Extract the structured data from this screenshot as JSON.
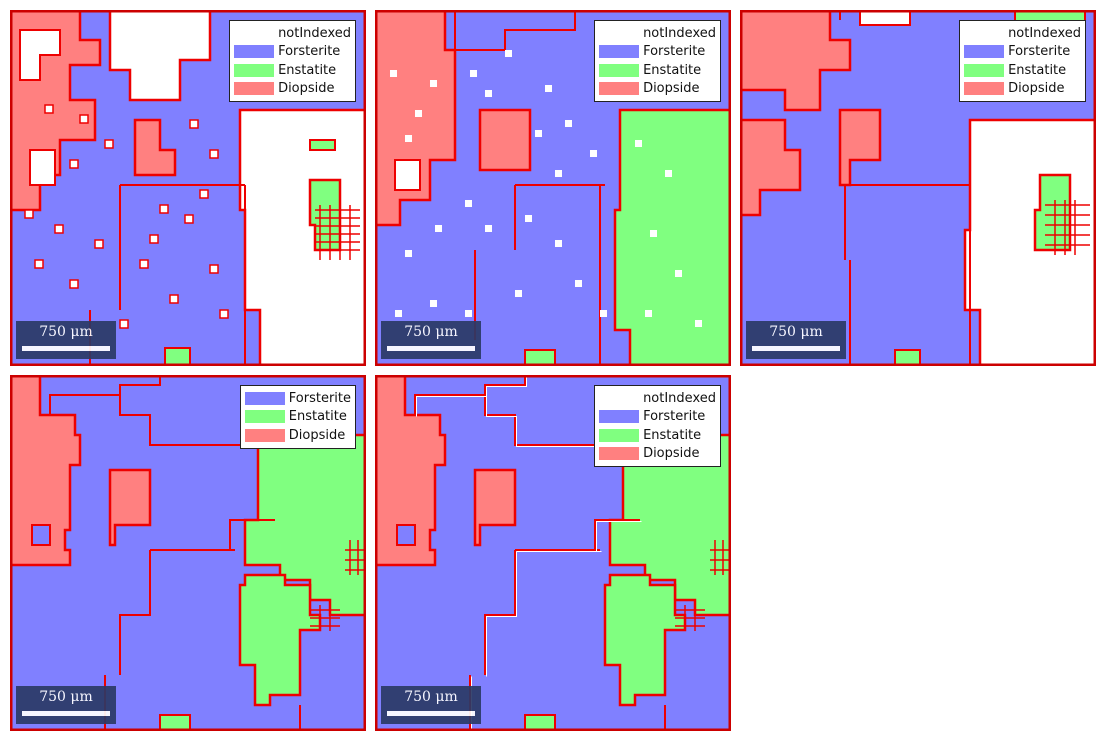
{
  "phases": [
    {
      "name": "notIndexed",
      "color": "#ffffff"
    },
    {
      "name": "Forsterite",
      "color": "#8080ff"
    },
    {
      "name": "Enstatite",
      "color": "#80ff80"
    },
    {
      "name": "Diopside",
      "color": "#ff8080"
    }
  ],
  "boundary_color": "#ee0000",
  "scalebar_label": "750 μm",
  "panels": [
    {
      "id": "panel-1",
      "legend": [
        "notIndexed",
        "Forsterite",
        "Enstatite",
        "Diopside"
      ]
    },
    {
      "id": "panel-2",
      "legend": [
        "notIndexed",
        "Forsterite",
        "Enstatite",
        "Diopside"
      ]
    },
    {
      "id": "panel-3",
      "legend": [
        "notIndexed",
        "Forsterite",
        "Enstatite",
        "Diopside"
      ]
    },
    {
      "id": "panel-4",
      "legend": [
        "Forsterite",
        "Enstatite",
        "Diopside"
      ]
    },
    {
      "id": "panel-5",
      "legend": [
        "notIndexed",
        "Forsterite",
        "Enstatite",
        "Diopside"
      ]
    }
  ]
}
